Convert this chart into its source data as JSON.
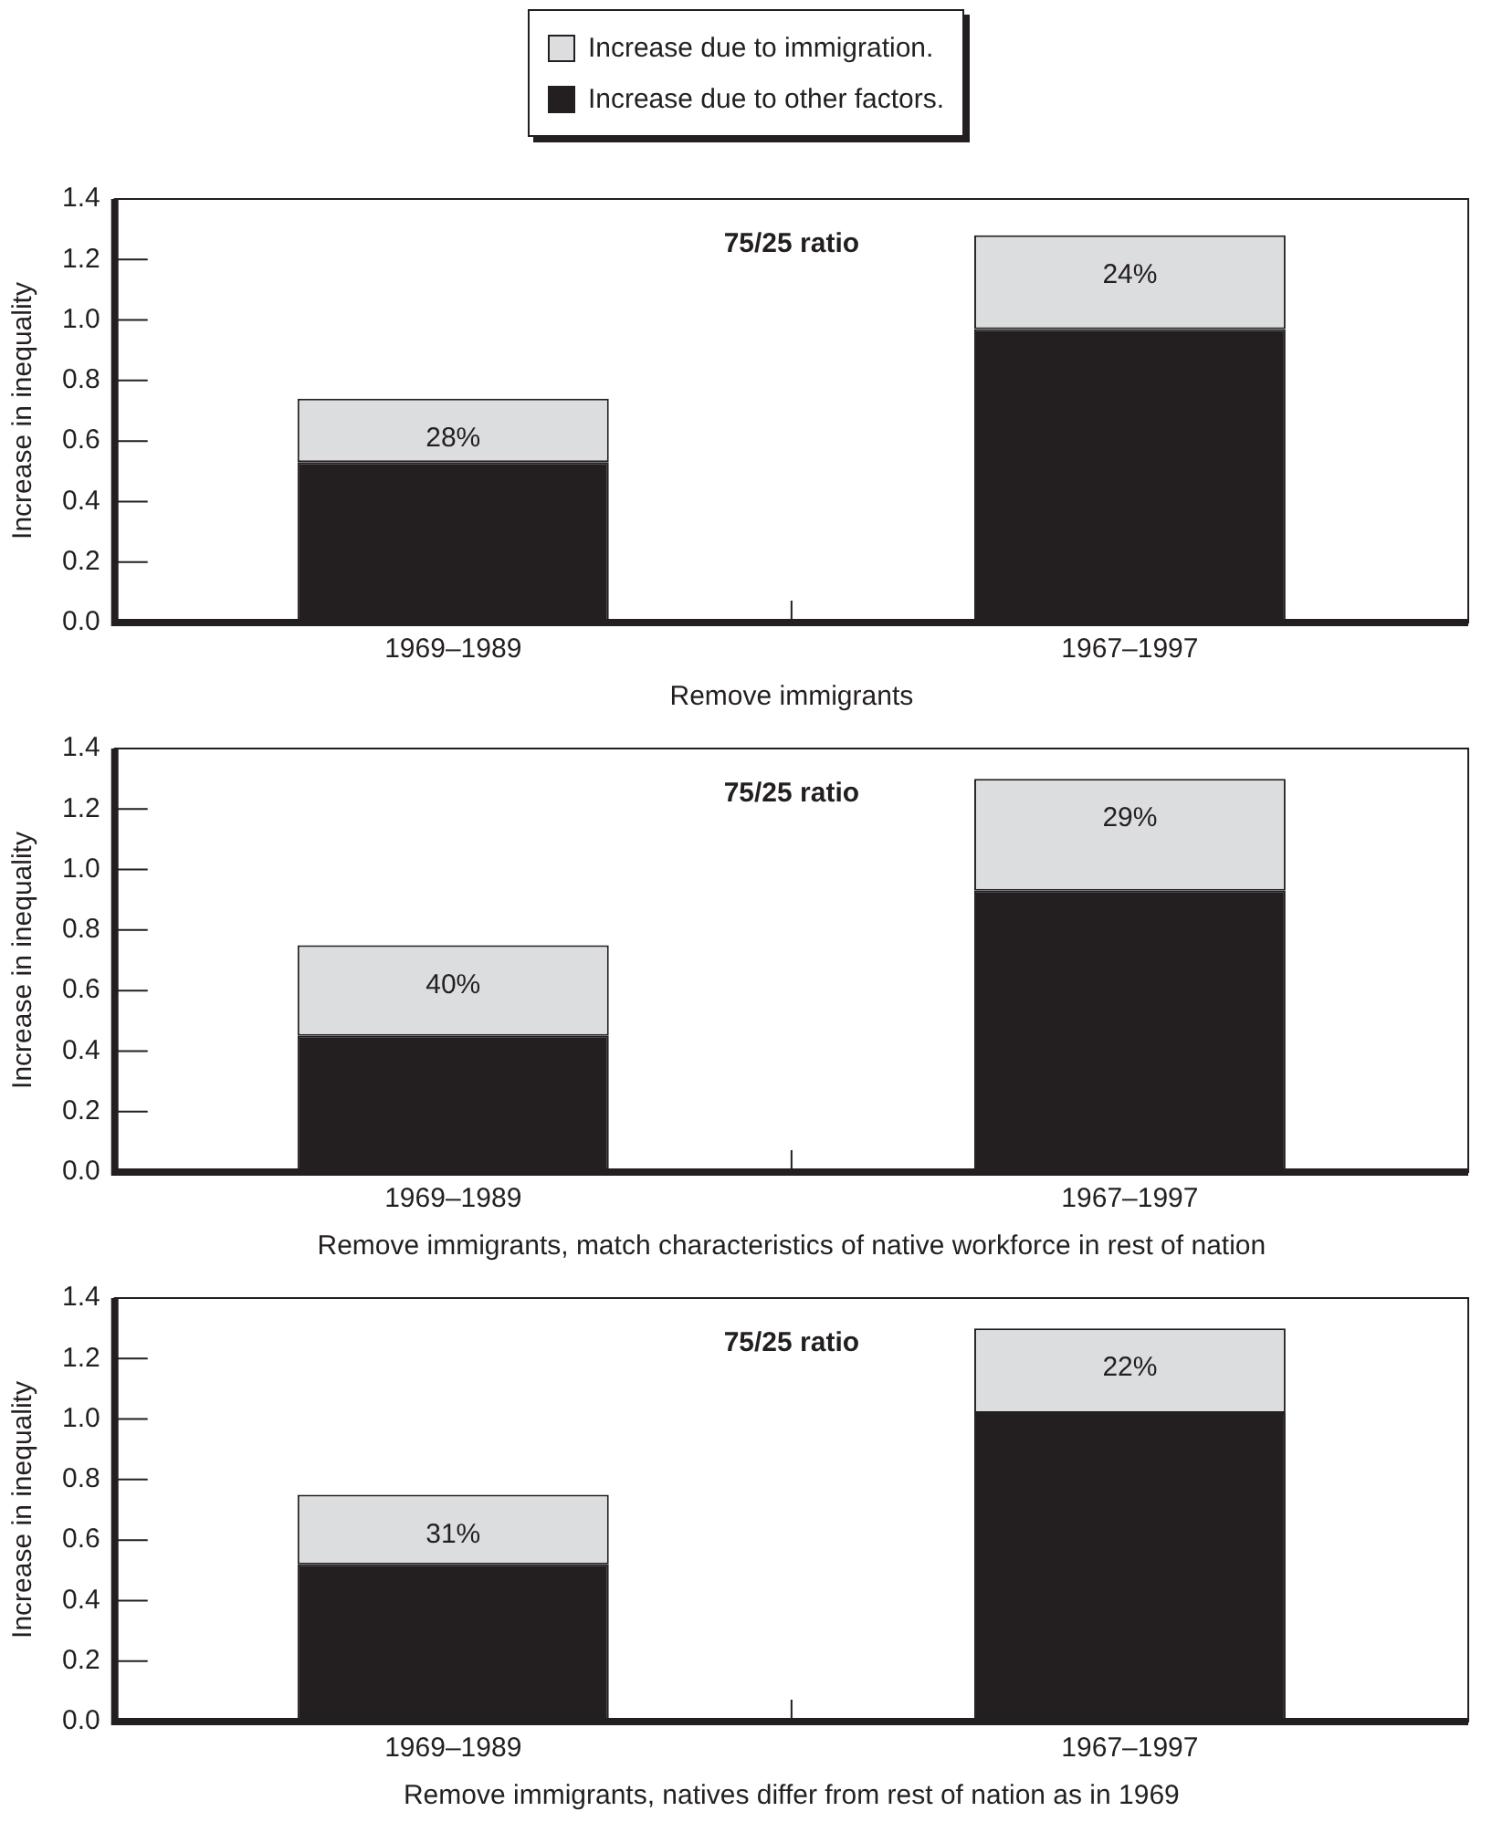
{
  "chart_data": [
    {
      "type": "bar",
      "stacked": true,
      "legend": "top",
      "annotations": [
        "75/25 ratio",
        "28%",
        "24%"
      ],
      "xlabel": "Remove immigrants",
      "ylabel": "Increase in inequality",
      "categories": [
        "1969–1989",
        "1967–1997"
      ],
      "ylim": [
        0,
        1.4
      ],
      "yticks": [
        {
          "value": 0,
          "label": "0.0"
        },
        {
          "value": 0.2,
          "label": "0.2"
        },
        {
          "value": 0.4,
          "label": "0.4"
        },
        {
          "value": 0.6,
          "label": "0.6"
        },
        {
          "value": 0.8,
          "label": "0.8"
        },
        {
          "value": 1,
          "label": "1.0"
        },
        {
          "value": 1.2,
          "label": "1.2"
        },
        {
          "value": 1.4,
          "label": "1.4"
        }
      ],
      "series": [
        {
          "name": "Increase due to other factors.",
          "color": "#231f20",
          "values": [
            0.53,
            0.97
          ]
        },
        {
          "name": "Increase due to immigration.",
          "color": "#dcdddf",
          "values": [
            0.21,
            0.31
          ]
        }
      ]
    },
    {
      "type": "bar",
      "stacked": true,
      "annotations": [
        "75/25 ratio",
        "40%",
        "29%"
      ],
      "xlabel": "Remove immigrants, match characteristics of native workforce in rest of nation",
      "ylabel": "Increase in inequality",
      "categories": [
        "1969–1989",
        "1967–1997"
      ],
      "ylim": [
        0,
        1.4
      ],
      "yticks": [
        {
          "value": 0,
          "label": "0.0"
        },
        {
          "value": 0.2,
          "label": "0.2"
        },
        {
          "value": 0.4,
          "label": "0.4"
        },
        {
          "value": 0.6,
          "label": "0.6"
        },
        {
          "value": 0.8,
          "label": "0.8"
        },
        {
          "value": 1,
          "label": "1.0"
        },
        {
          "value": 1.2,
          "label": "1.2"
        },
        {
          "value": 1.4,
          "label": "1.4"
        }
      ],
      "series": [
        {
          "color": "#231f20",
          "values": [
            0.45,
            0.93
          ]
        },
        {
          "color": "#dcdddf",
          "values": [
            0.3,
            0.37
          ]
        }
      ]
    },
    {
      "type": "bar",
      "stacked": true,
      "annotations": [
        "75/25 ratio",
        "31%",
        "22%"
      ],
      "xlabel": "Remove immigrants, natives differ from rest of nation as in 1969",
      "ylabel": "Increase in inequality",
      "categories": [
        "1969–1989",
        "1967–1997"
      ],
      "ylim": [
        0,
        1.4
      ],
      "yticks": [
        {
          "value": 0,
          "label": "0.0"
        },
        {
          "value": 0.2,
          "label": "0.2"
        },
        {
          "value": 0.4,
          "label": "0.4"
        },
        {
          "value": 0.6,
          "label": "0.6"
        },
        {
          "value": 0.8,
          "label": "0.8"
        },
        {
          "value": 1,
          "label": "1.0"
        },
        {
          "value": 1.2,
          "label": "1.2"
        },
        {
          "value": 1.4,
          "label": "1.4"
        }
      ],
      "series": [
        {
          "color": "#231f20",
          "values": [
            0.52,
            1.02
          ]
        },
        {
          "color": "#dcdddf",
          "values": [
            0.23,
            0.28
          ]
        }
      ]
    }
  ]
}
